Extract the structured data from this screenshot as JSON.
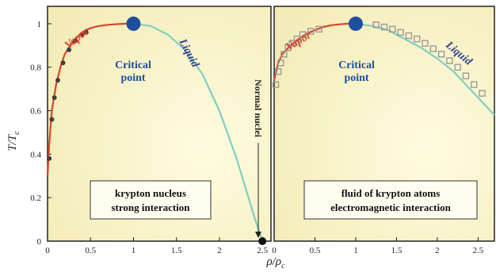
{
  "figure": {
    "y_axis_label": "T/T",
    "y_axis_sub": "c",
    "x_axis_label": "ρ/ρ",
    "x_axis_sub": "c"
  },
  "colors": {
    "vapor": "#d8452b",
    "liquid": "#7fcfc0",
    "critical_point": "#1f4e9e",
    "panel_bg": "#fbf5c8",
    "normal_nuclei_marker": "#111111",
    "data_marker_face": "#9a9a9a"
  },
  "chart_data": [
    {
      "type": "line",
      "panel": "left",
      "xlim": [
        0,
        2.6
      ],
      "ylim": [
        0,
        1.08
      ],
      "x_ticks": [
        "0",
        "0.5",
        "1",
        "1.5",
        "2",
        "2.5"
      ],
      "y_ticks": [
        "0",
        "0.2",
        "0.4",
        "0.6",
        "0.8",
        "1"
      ],
      "series": [
        {
          "name": "Vapor",
          "x": [
            0.0,
            0.02,
            0.05,
            0.1,
            0.15,
            0.2,
            0.3,
            0.4,
            0.5,
            0.6,
            0.7,
            0.8,
            0.9,
            1.0
          ],
          "y": [
            0.3,
            0.45,
            0.6,
            0.72,
            0.8,
            0.86,
            0.92,
            0.96,
            0.98,
            0.99,
            0.995,
            0.998,
            1.0,
            1.0
          ]
        },
        {
          "name": "Liquid",
          "x": [
            1.0,
            1.2,
            1.4,
            1.6,
            1.8,
            2.0,
            2.2,
            2.4,
            2.5
          ],
          "y": [
            1.0,
            0.99,
            0.95,
            0.88,
            0.77,
            0.6,
            0.38,
            0.12,
            0.0
          ]
        },
        {
          "name": "data",
          "x": [
            0.02,
            0.05,
            0.08,
            0.12,
            0.18,
            0.25,
            0.32,
            0.4,
            0.45
          ],
          "y": [
            0.38,
            0.56,
            0.66,
            0.74,
            0.82,
            0.88,
            0.92,
            0.95,
            0.96
          ]
        }
      ],
      "critical_point": {
        "x": 1.0,
        "y": 1.0
      },
      "normal_nuclei_point": {
        "x": 2.5,
        "y": 0.0
      },
      "labels": {
        "vapor": "Vapor",
        "liquid": "Liquid",
        "critical": [
          "Critical",
          "point"
        ],
        "normal_nuclei": "Normal nuclei",
        "box": [
          "krypton nucleus",
          "strong interaction"
        ]
      }
    },
    {
      "type": "line",
      "panel": "right",
      "xlim": [
        0,
        2.7
      ],
      "ylim": [
        0,
        1.08
      ],
      "x_ticks": [
        "0",
        "0.5",
        "1",
        "1.5",
        "2",
        "2.5"
      ],
      "series": [
        {
          "name": "Vapor",
          "x": [
            0.0,
            0.05,
            0.1,
            0.2,
            0.3,
            0.4,
            0.5,
            0.6,
            0.7,
            0.8,
            0.9,
            1.0
          ],
          "y": [
            0.74,
            0.82,
            0.86,
            0.9,
            0.93,
            0.955,
            0.97,
            0.985,
            0.993,
            0.997,
            1.0,
            1.0
          ]
        },
        {
          "name": "Liquid",
          "x": [
            1.0,
            1.2,
            1.4,
            1.6,
            1.8,
            2.0,
            2.2,
            2.4,
            2.6,
            2.7
          ],
          "y": [
            1.0,
            0.99,
            0.97,
            0.93,
            0.89,
            0.84,
            0.78,
            0.7,
            0.62,
            0.58
          ]
        },
        {
          "name": "data",
          "x": [
            0.02,
            0.05,
            0.08,
            0.12,
            0.17,
            0.22,
            0.28,
            0.35,
            0.45,
            0.55,
            1.25,
            1.35,
            1.45,
            1.55,
            1.65,
            1.75,
            1.85,
            1.95,
            2.05,
            2.15,
            2.25,
            2.35,
            2.45,
            2.55
          ],
          "y": [
            0.72,
            0.78,
            0.82,
            0.86,
            0.89,
            0.91,
            0.93,
            0.95,
            0.965,
            0.975,
            0.995,
            0.985,
            0.975,
            0.96,
            0.945,
            0.93,
            0.91,
            0.885,
            0.86,
            0.83,
            0.8,
            0.76,
            0.72,
            0.68
          ]
        }
      ],
      "critical_point": {
        "x": 1.0,
        "y": 1.0
      },
      "labels": {
        "vapor": "Vapor",
        "liquid": "Liquid",
        "critical": [
          "Critical",
          "point"
        ],
        "box": [
          "fluid of krypton atoms",
          "electromagnetic interaction"
        ]
      }
    }
  ]
}
